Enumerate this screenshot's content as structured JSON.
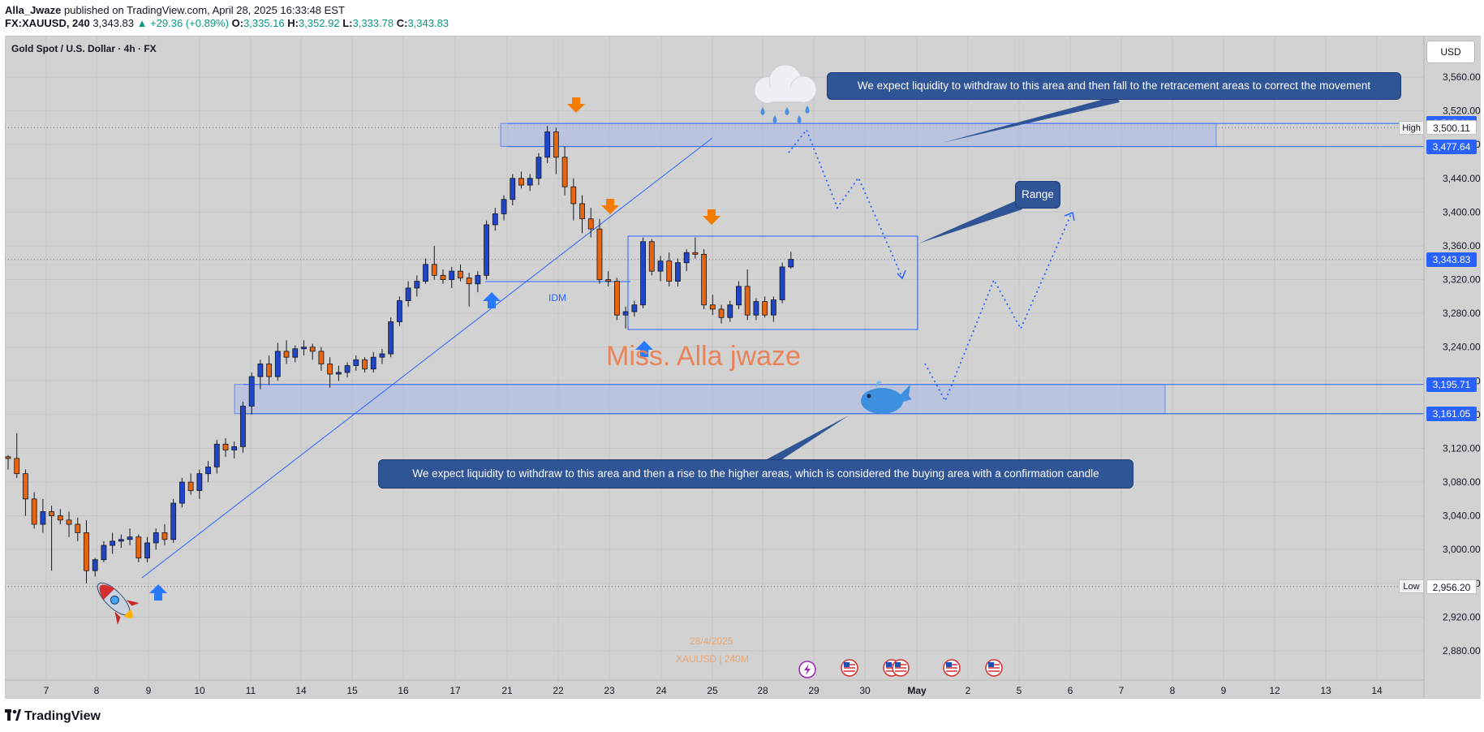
{
  "header": {
    "author": "Alla_Jwaze",
    "published_text": " published on TradingView.com, April 28, 2025 16:33:48 EST",
    "symbol_line": "FX:XAUUSD, 240",
    "last": "3,343.83",
    "change": "▲ +29.36 (+0.89%)",
    "o_label": "O:",
    "o": "3,335.16",
    "h_label": "H:",
    "h": "3,352.92",
    "l_label": "L:",
    "l": "3,333.78",
    "c_label": "C:",
    "c": "3,343.83"
  },
  "chart_title": "Gold Spot / U.S. Dollar · 4h · FX",
  "currency": "USD",
  "notes": {
    "top": "We expect liquidity to withdraw to this area and then fall to the retracement areas to correct the movement",
    "range": "Range",
    "bottom": "We expect liquidity to withdraw to this area and then a rise to the higher areas, which is considered the buying area with a confirmation candle"
  },
  "watermark": "Miss. Alla jwaze",
  "idm_label": "IDM",
  "stamp": {
    "date": "28/4/2025",
    "symbol": "XAUUSD | 240M"
  },
  "price_tags": [
    {
      "label": "3,505.11",
      "value": 3505.11,
      "style": "blue"
    },
    {
      "label": "3,500.11",
      "value": 3500.11,
      "style": "white",
      "tag": "High"
    },
    {
      "label": "3,477.64",
      "value": 3477.64,
      "style": "blue"
    },
    {
      "label": "3,343.83",
      "value": 3343.83,
      "style": "blue"
    },
    {
      "label": "3,195.71",
      "value": 3195.71,
      "style": "blue"
    },
    {
      "label": "3,161.05",
      "value": 3161.05,
      "style": "blue"
    },
    {
      "label": "2,956.20",
      "value": 2956.2,
      "style": "white",
      "tag": "Low"
    }
  ],
  "brand": "TradingView",
  "colors": {
    "up": "#2046c8",
    "down": "#e8650f",
    "zone": "#a8b8e8",
    "note_bg": "#2f5597",
    "price_tag": "#2962ff",
    "arrow_down": "#f57c00",
    "arrow_up": "#2979ff"
  },
  "chart_data": {
    "type": "candlestick",
    "title": "Gold Spot / U.S. Dollar · 4h · FX",
    "ylim": [
      2840,
      3600
    ],
    "y_ticks": [
      2880,
      2920,
      2960,
      3000,
      3040,
      3080,
      3120,
      3160,
      3200,
      3240,
      3280,
      3320,
      3360,
      3400,
      3440,
      3480,
      3520,
      3560
    ],
    "y_tick_labels": [
      "2,880.00",
      "2,920.00",
      "2,960.00",
      "3,000.00",
      "3,040.00",
      "3,080.00",
      "3,120.00",
      "3,160.00",
      "3,200.00",
      "3,240.00",
      "3,280.00",
      "3,320.00",
      "3,360.00",
      "3,400.00",
      "3,440.00",
      "3,480.00",
      "3,520.00",
      "3,560.00"
    ],
    "x_labels": [
      "7",
      "8",
      "9",
      "10",
      "11",
      "14",
      "15",
      "16",
      "17",
      "21",
      "22",
      "23",
      "24",
      "25",
      "28",
      "29",
      "30",
      "May",
      "2",
      "5",
      "6",
      "7",
      "8",
      "9",
      "12",
      "13",
      "14"
    ],
    "candles": [
      [
        3110,
        3112,
        3095,
        3108
      ],
      [
        3108,
        3138,
        3085,
        3090
      ],
      [
        3090,
        3095,
        3040,
        3060
      ],
      [
        3060,
        3068,
        3025,
        3030
      ],
      [
        3030,
        3060,
        3020,
        3045
      ],
      [
        3045,
        3052,
        2975,
        3040
      ],
      [
        3040,
        3048,
        3030,
        3035
      ],
      [
        3035,
        3045,
        3015,
        3030
      ],
      [
        3030,
        3038,
        3010,
        3020
      ],
      [
        3020,
        3035,
        2960,
        2975
      ],
      [
        2975,
        2990,
        2968,
        2988
      ],
      [
        2988,
        3010,
        2985,
        3005
      ],
      [
        3005,
        3020,
        2995,
        3010
      ],
      [
        3010,
        3018,
        3002,
        3012
      ],
      [
        3012,
        3025,
        3005,
        3015
      ],
      [
        3015,
        3018,
        2985,
        2990
      ],
      [
        2990,
        3015,
        2985,
        3008
      ],
      [
        3008,
        3025,
        3000,
        3020
      ],
      [
        3020,
        3030,
        3005,
        3012
      ],
      [
        3012,
        3060,
        3008,
        3055
      ],
      [
        3055,
        3085,
        3050,
        3080
      ],
      [
        3080,
        3090,
        3065,
        3070
      ],
      [
        3070,
        3095,
        3060,
        3090
      ],
      [
        3090,
        3105,
        3080,
        3098
      ],
      [
        3098,
        3130,
        3090,
        3125
      ],
      [
        3125,
        3132,
        3110,
        3118
      ],
      [
        3118,
        3128,
        3108,
        3122
      ],
      [
        3122,
        3175,
        3115,
        3170
      ],
      [
        3170,
        3210,
        3160,
        3205
      ],
      [
        3205,
        3225,
        3190,
        3220
      ],
      [
        3220,
        3230,
        3195,
        3205
      ],
      [
        3205,
        3245,
        3200,
        3235
      ],
      [
        3235,
        3248,
        3220,
        3228
      ],
      [
        3228,
        3242,
        3222,
        3238
      ],
      [
        3238,
        3248,
        3230,
        3240
      ],
      [
        3240,
        3244,
        3225,
        3235
      ],
      [
        3235,
        3240,
        3212,
        3220
      ],
      [
        3220,
        3228,
        3192,
        3208
      ],
      [
        3208,
        3218,
        3200,
        3210
      ],
      [
        3210,
        3222,
        3204,
        3218
      ],
      [
        3218,
        3230,
        3212,
        3225
      ],
      [
        3225,
        3228,
        3210,
        3214
      ],
      [
        3214,
        3234,
        3210,
        3228
      ],
      [
        3228,
        3238,
        3220,
        3232
      ],
      [
        3232,
        3275,
        3228,
        3270
      ],
      [
        3270,
        3300,
        3265,
        3295
      ],
      [
        3295,
        3318,
        3288,
        3310
      ],
      [
        3310,
        3325,
        3300,
        3318
      ],
      [
        3318,
        3345,
        3315,
        3338
      ],
      [
        3338,
        3360,
        3320,
        3325
      ],
      [
        3325,
        3332,
        3315,
        3320
      ],
      [
        3320,
        3335,
        3310,
        3330
      ],
      [
        3330,
        3338,
        3318,
        3322
      ],
      [
        3322,
        3328,
        3288,
        3315
      ],
      [
        3315,
        3330,
        3305,
        3325
      ],
      [
        3325,
        3390,
        3320,
        3385
      ],
      [
        3385,
        3405,
        3378,
        3398
      ],
      [
        3398,
        3420,
        3390,
        3415
      ],
      [
        3415,
        3445,
        3408,
        3440
      ],
      [
        3440,
        3448,
        3428,
        3432
      ],
      [
        3432,
        3445,
        3425,
        3440
      ],
      [
        3440,
        3470,
        3432,
        3465
      ],
      [
        3465,
        3502,
        3458,
        3495
      ],
      [
        3495,
        3500,
        3445,
        3465
      ],
      [
        3465,
        3478,
        3420,
        3430
      ],
      [
        3430,
        3440,
        3390,
        3410
      ],
      [
        3410,
        3420,
        3375,
        3392
      ],
      [
        3392,
        3405,
        3370,
        3380
      ],
      [
        3380,
        3392,
        3315,
        3320
      ],
      [
        3320,
        3330,
        3312,
        3318
      ],
      [
        3318,
        3322,
        3272,
        3278
      ],
      [
        3278,
        3288,
        3262,
        3282
      ],
      [
        3282,
        3295,
        3276,
        3290
      ],
      [
        3290,
        3370,
        3286,
        3365
      ],
      [
        3365,
        3368,
        3325,
        3330
      ],
      [
        3330,
        3348,
        3318,
        3342
      ],
      [
        3342,
        3352,
        3312,
        3318
      ],
      [
        3318,
        3345,
        3312,
        3340
      ],
      [
        3340,
        3356,
        3330,
        3352
      ],
      [
        3352,
        3370,
        3345,
        3350
      ],
      [
        3350,
        3356,
        3285,
        3290
      ],
      [
        3290,
        3302,
        3278,
        3285
      ],
      [
        3285,
        3290,
        3268,
        3275
      ],
      [
        3275,
        3295,
        3270,
        3290
      ],
      [
        3290,
        3318,
        3285,
        3312
      ],
      [
        3312,
        3332,
        3272,
        3278
      ],
      [
        3278,
        3298,
        3272,
        3294
      ],
      [
        3294,
        3300,
        3275,
        3278
      ],
      [
        3278,
        3300,
        3270,
        3296
      ],
      [
        3296,
        3340,
        3292,
        3335
      ],
      [
        3335,
        3353,
        3333,
        3344
      ]
    ],
    "zones": [
      {
        "from": 3477.64,
        "to": 3505.11
      },
      {
        "from": 3161.05,
        "to": 3195.71
      }
    ],
    "last_price": 3343.83,
    "high": 3500.11,
    "low": 2956.2
  }
}
